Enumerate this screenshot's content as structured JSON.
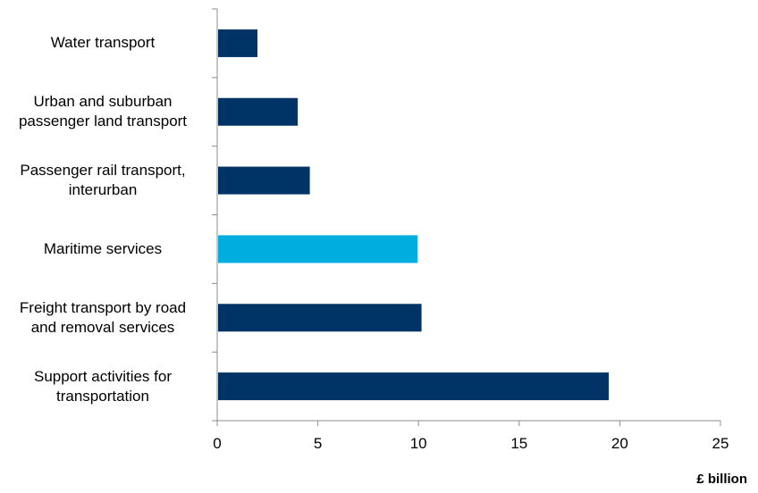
{
  "chart_data": {
    "type": "bar",
    "orientation": "horizontal",
    "categories": [
      "Water transport",
      "Urban and suburban passenger land transport",
      "Passenger rail transport, interurban",
      "Maritime services",
      "Freight transport by road and removal services",
      "Support activities for transportation"
    ],
    "category_lines": [
      [
        "Water transport"
      ],
      [
        "Urban and suburban",
        "passenger land transport"
      ],
      [
        "Passenger rail transport,",
        "interurban"
      ],
      [
        "Maritime services"
      ],
      [
        "Freight transport by road",
        "and removal services"
      ],
      [
        "Support activities for",
        "transportation"
      ]
    ],
    "values": [
      2.0,
      4.0,
      4.6,
      9.95,
      10.15,
      19.45
    ],
    "highlight_index": 3,
    "xlim": [
      0,
      25
    ],
    "xticks": [
      0,
      5,
      10,
      15,
      20,
      25
    ],
    "xlabel": "£ billion",
    "grid": false,
    "colors": {
      "bar": "#003366",
      "highlight": "#00ADDF",
      "axis": "#8C8C8C"
    }
  }
}
